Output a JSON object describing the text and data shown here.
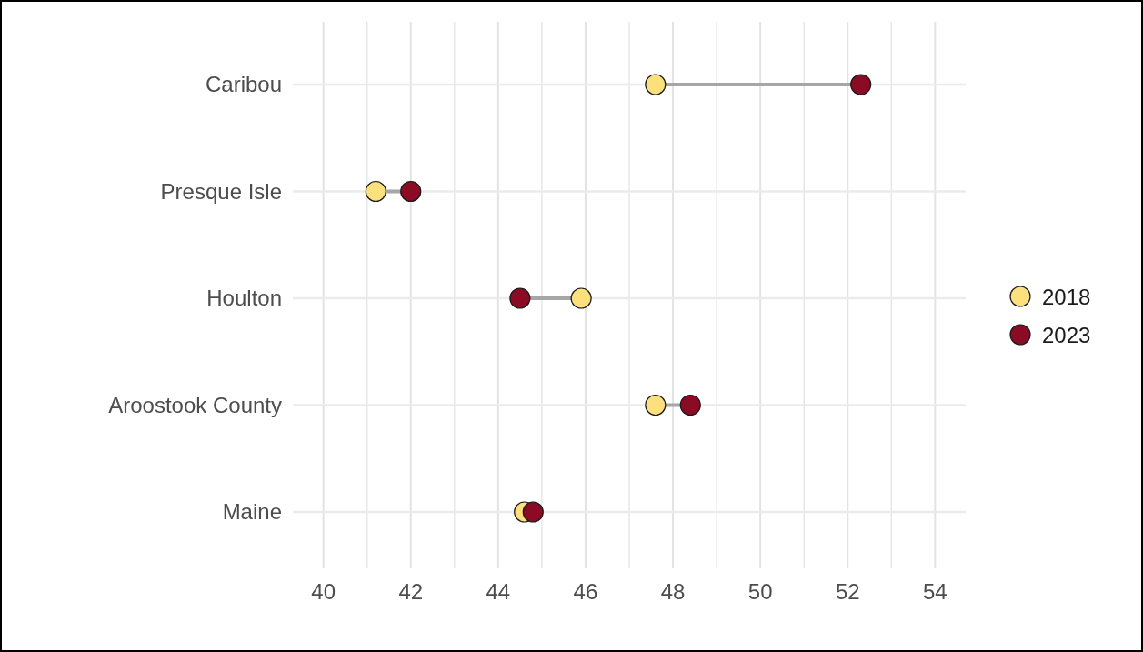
{
  "chart_data": {
    "type": "scatter",
    "orientation": "horizontal",
    "categories": [
      "Caribou",
      "Presque Isle",
      "Houlton",
      "Aroostook County",
      "Maine"
    ],
    "series": [
      {
        "name": "2018",
        "color": "#fde07e",
        "values": [
          47.6,
          41.2,
          45.9,
          47.6,
          44.6
        ]
      },
      {
        "name": "2023",
        "color": "#8b0a24",
        "values": [
          52.3,
          42.0,
          44.5,
          48.4,
          44.8
        ]
      }
    ],
    "xlim": [
      39.3,
      54.7
    ],
    "xticks": [
      40,
      {
        "value": 41,
        "label": null
      },
      42,
      {
        "value": 43,
        "label": null
      },
      44,
      {
        "value": 45,
        "label": null
      },
      46,
      {
        "value": 47,
        "label": null
      },
      48,
      {
        "value": 49,
        "label": null
      },
      50,
      {
        "value": 51,
        "label": null
      },
      52,
      {
        "value": 53,
        "label": null
      },
      54
    ],
    "grid": true,
    "legend": "right",
    "marker": "circle"
  }
}
